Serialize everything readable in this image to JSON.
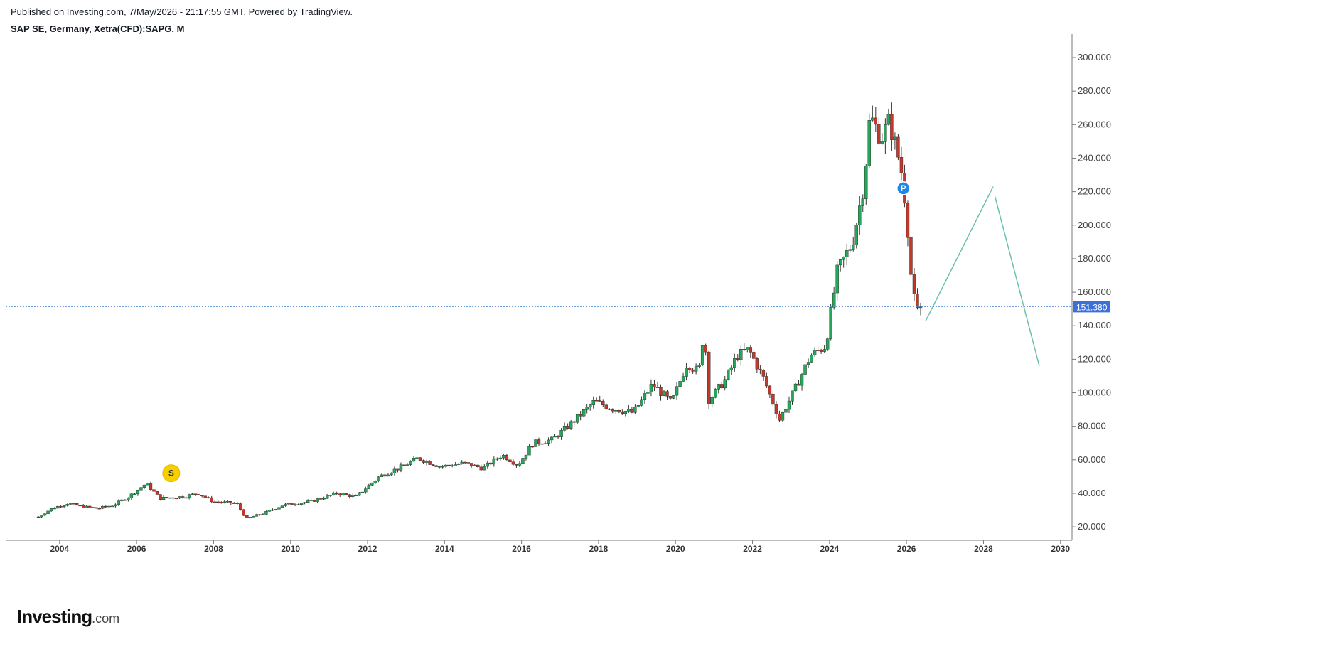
{
  "header": {
    "published": "Published on Investing.com, 7/May/2026 - 21:17:55 GMT, Powered by TradingView.",
    "symbol": "SAP SE, Germany, Xetra(CFD):SAPG, M"
  },
  "logo": {
    "brand": "Investing",
    "tld": ".com"
  },
  "colors": {
    "up": "#26a65b",
    "down": "#c0392b",
    "wick": "#333333",
    "price_line": "#5b8fd6",
    "price_badge": "#3d6fd8",
    "projection": "#6cc0b0",
    "axis": "#7a7a7a",
    "marker_s": "#f5d000",
    "marker_p": "#1e88e5"
  },
  "chart_data": {
    "type": "candlestick",
    "interval": "Monthly",
    "x_axis": {
      "range": [
        2002.6,
        2030.3
      ],
      "ticks": [
        "2004",
        "2006",
        "2008",
        "2010",
        "2012",
        "2014",
        "2016",
        "2018",
        "2020",
        "2022",
        "2024",
        "2026",
        "2028",
        "2030"
      ]
    },
    "y_axis": {
      "range": [
        12,
        314
      ],
      "position": "right",
      "ticks": [
        "20.000",
        "40.000",
        "60.000",
        "80.000",
        "100.000",
        "120.000",
        "140.000",
        "160.000",
        "180.000",
        "200.000",
        "220.000",
        "240.000",
        "260.000",
        "280.000",
        "300.000"
      ]
    },
    "current_price": {
      "value": 151.38,
      "label": "151.380"
    },
    "series_path": [
      [
        2003.45,
        26
      ],
      [
        2003.8,
        31
      ],
      [
        2004.2,
        34
      ],
      [
        2004.6,
        32
      ],
      [
        2005.0,
        31
      ],
      [
        2005.4,
        33
      ],
      [
        2005.8,
        38
      ],
      [
        2006.25,
        46
      ],
      [
        2006.6,
        37
      ],
      [
        2007.2,
        38
      ],
      [
        2007.6,
        40
      ],
      [
        2008.0,
        35
      ],
      [
        2008.6,
        34
      ],
      [
        2008.85,
        25
      ],
      [
        2009.3,
        28
      ],
      [
        2009.8,
        33
      ],
      [
        2010.5,
        35
      ],
      [
        2011.2,
        40
      ],
      [
        2011.7,
        38
      ],
      [
        2012.3,
        50
      ],
      [
        2012.9,
        56
      ],
      [
        2013.3,
        61
      ],
      [
        2013.9,
        56
      ],
      [
        2014.5,
        58
      ],
      [
        2015.0,
        55
      ],
      [
        2015.5,
        63
      ],
      [
        2015.9,
        57
      ],
      [
        2016.3,
        70
      ],
      [
        2016.8,
        72
      ],
      [
        2017.4,
        84
      ],
      [
        2017.9,
        95
      ],
      [
        2018.3,
        91
      ],
      [
        2018.9,
        88
      ],
      [
        2019.4,
        105
      ],
      [
        2019.9,
        94
      ],
      [
        2020.3,
        118
      ],
      [
        2020.6,
        112
      ],
      [
        2020.75,
        140
      ],
      [
        2020.85,
        95
      ],
      [
        2021.3,
        108
      ],
      [
        2021.6,
        122
      ],
      [
        2021.9,
        126
      ],
      [
        2022.3,
        108
      ],
      [
        2022.7,
        84
      ],
      [
        2023.1,
        102
      ],
      [
        2023.5,
        122
      ],
      [
        2023.9,
        128
      ],
      [
        2024.2,
        172
      ],
      [
        2024.6,
        190
      ],
      [
        2024.9,
        225
      ],
      [
        2025.05,
        265
      ],
      [
        2025.35,
        252
      ],
      [
        2025.55,
        262
      ],
      [
        2025.85,
        235
      ],
      [
        2026.0,
        208
      ],
      [
        2026.15,
        160
      ],
      [
        2026.3,
        147
      ],
      [
        2026.35,
        151.38
      ]
    ],
    "projection_lines": [
      {
        "from": [
          2026.5,
          143
        ],
        "to": [
          2028.25,
          223
        ]
      },
      {
        "from": [
          2028.3,
          217
        ],
        "to": [
          2029.45,
          116
        ]
      }
    ],
    "markers": [
      {
        "label": "S",
        "x": 2006.9,
        "y": 52
      },
      {
        "label": "P",
        "x": 2025.92,
        "y": 222
      }
    ]
  }
}
